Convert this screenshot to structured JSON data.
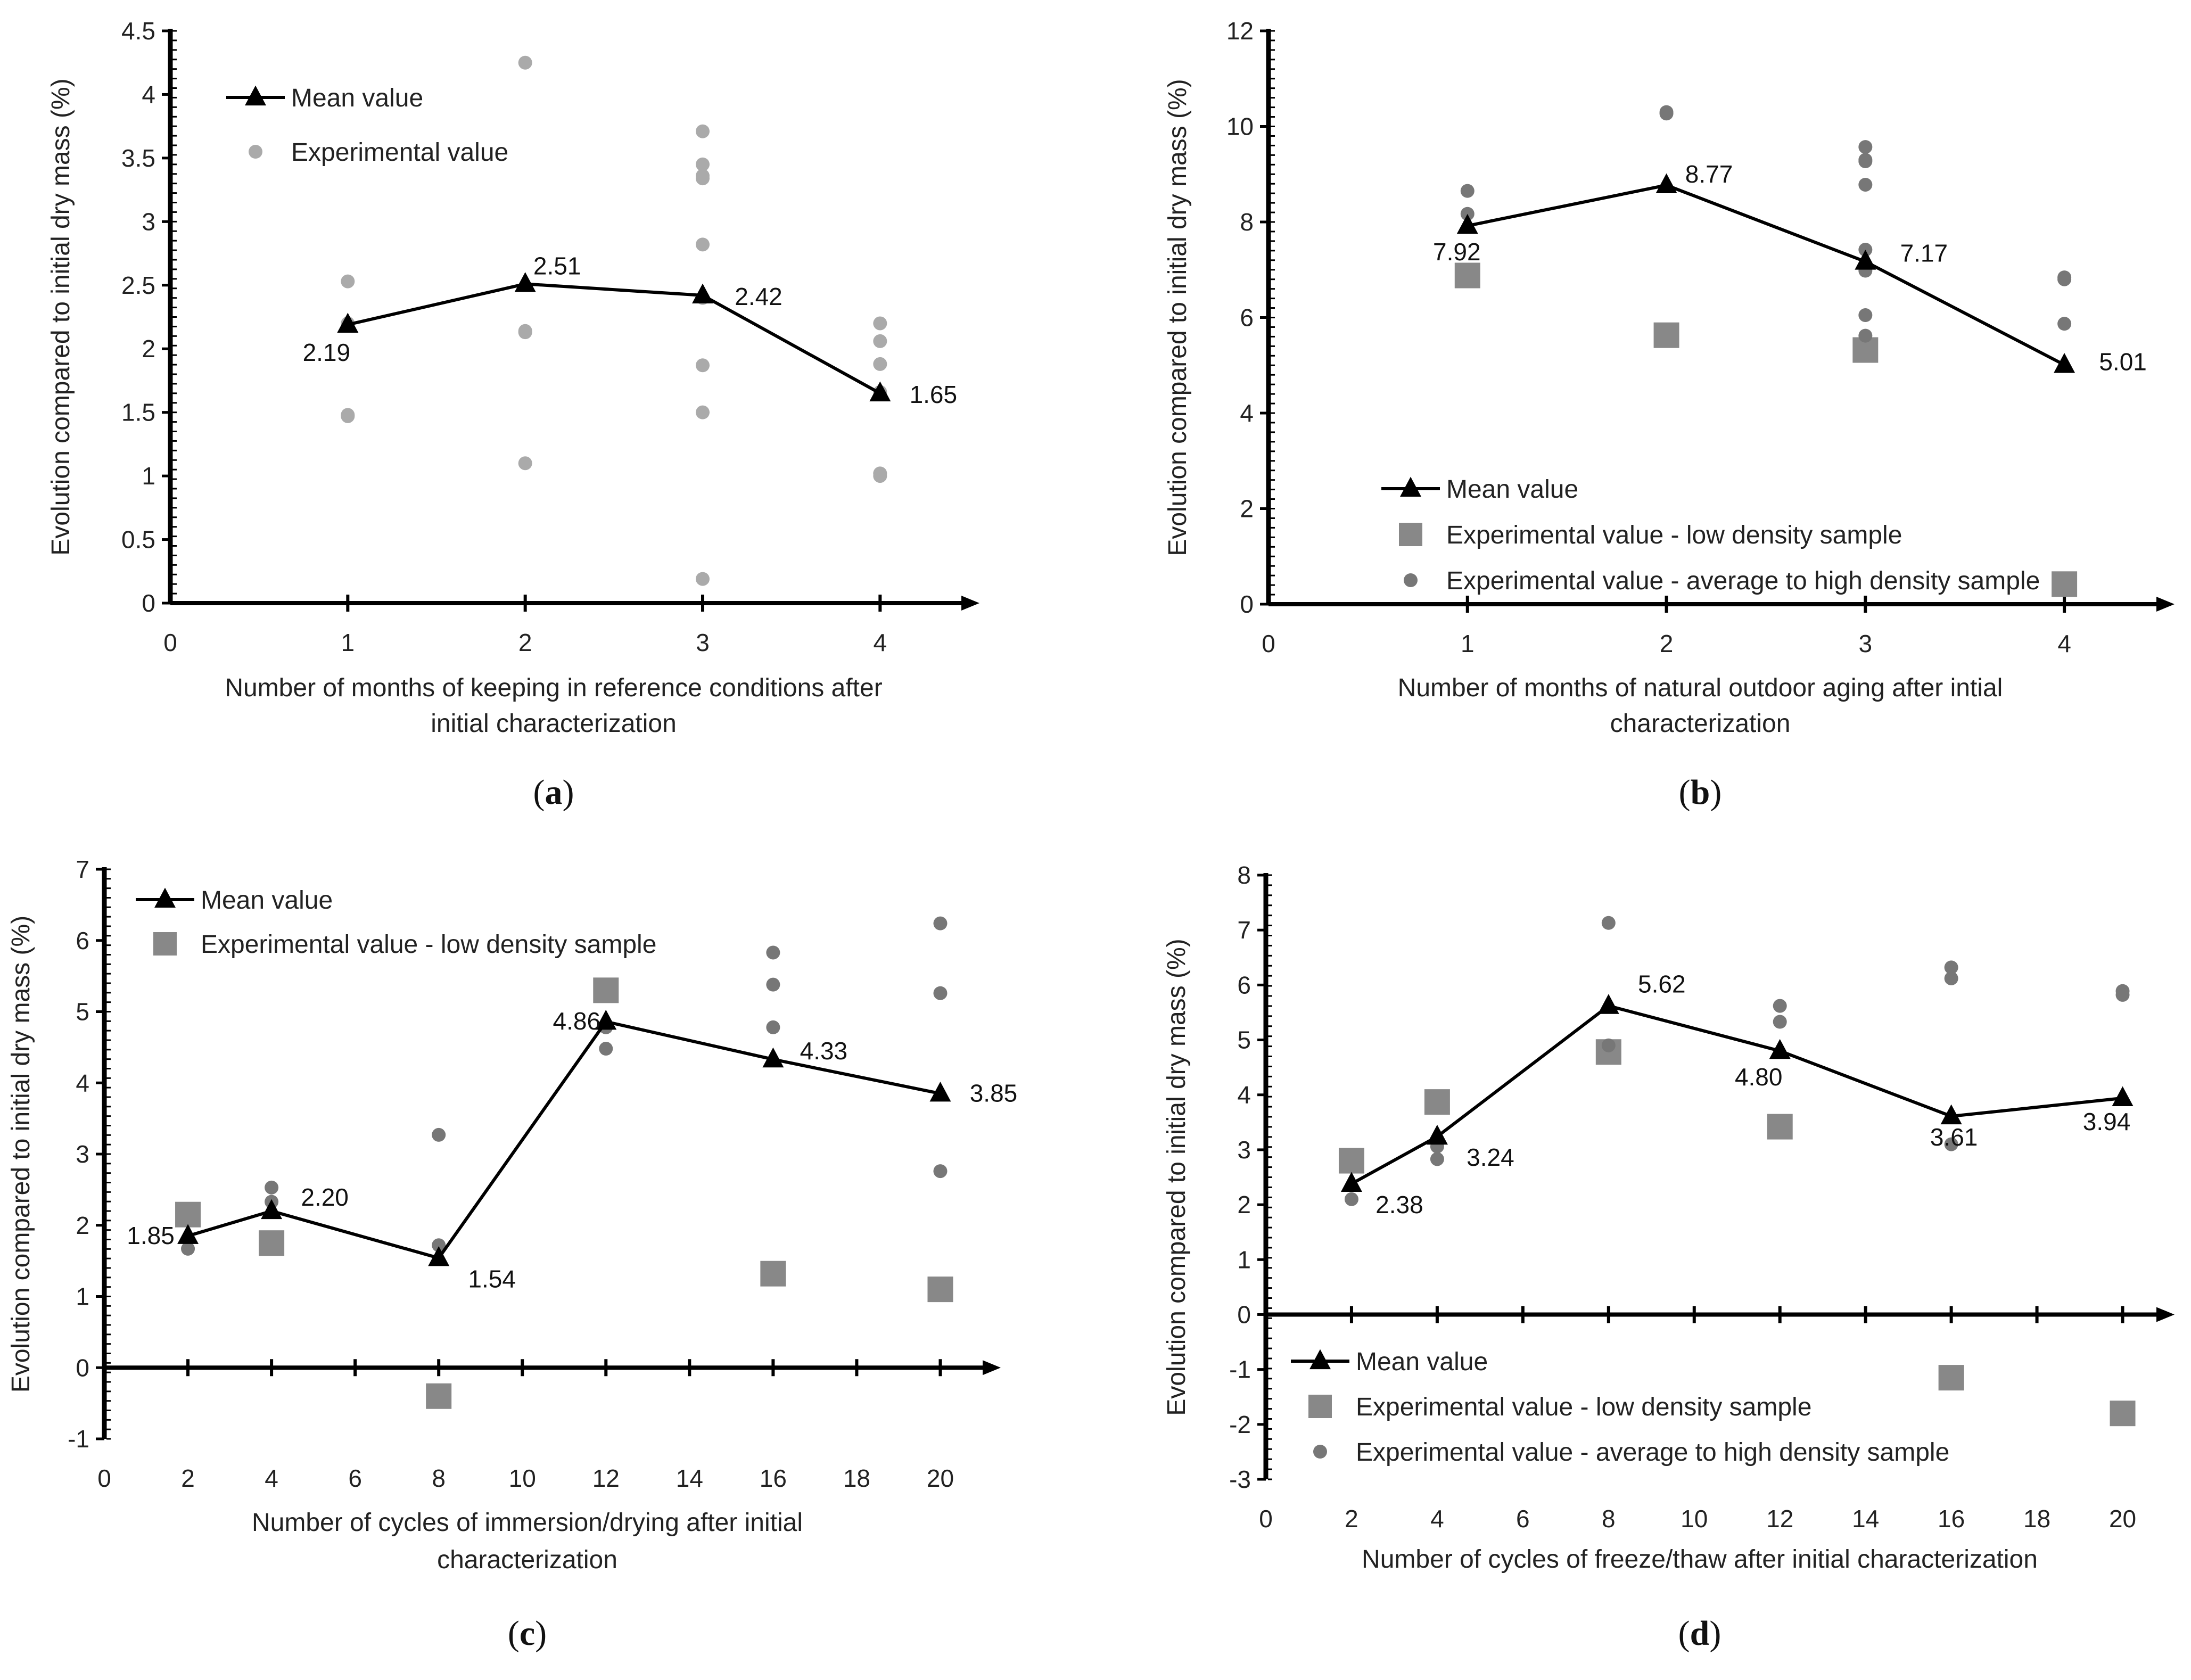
{
  "colors": {
    "axis": "#000000",
    "mean": "#000000",
    "exp_light": "#aaaaaa",
    "exp_low": "#888888",
    "exp_high": "#777777"
  },
  "chart_data": [
    {
      "id": "a",
      "type": "line",
      "caption_letter": "a",
      "ylabel": "Evolution compared to initial dry mass (%)",
      "xlabel_lines": [
        "Number of months of keeping in reference conditions after",
        "initial characterization"
      ],
      "xlim": [
        0,
        4.5
      ],
      "ylim": [
        0,
        4.5
      ],
      "xticks": [
        0,
        1,
        2,
        3,
        4
      ],
      "xtick_labels": [
        "0",
        "1",
        "2",
        "3",
        "4"
      ],
      "yticks": [
        0,
        0.5,
        1,
        1.5,
        2,
        2.5,
        3,
        3.5,
        4,
        4.5
      ],
      "ytick_labels": [
        "0",
        "0.5",
        "1",
        "1.5",
        "2",
        "2.5",
        "3",
        "3.5",
        "4",
        "4.5"
      ],
      "legend": [
        "Mean value",
        "Experimental value"
      ],
      "series": [
        {
          "name": "Mean value",
          "kind": "mean",
          "x": [
            1,
            2,
            3,
            4
          ],
          "y": [
            2.19,
            2.51,
            2.42,
            1.65
          ],
          "labels": [
            "2.19",
            "2.51",
            "2.42",
            "1.65"
          ]
        },
        {
          "name": "Experimental value",
          "kind": "exp_light",
          "x": [
            1,
            1,
            1,
            1,
            2,
            2,
            2,
            2,
            3,
            3,
            3,
            3,
            3,
            3,
            3,
            3,
            3,
            4,
            4,
            4,
            4,
            4,
            4
          ],
          "y": [
            2.53,
            2.2,
            1.48,
            1.47,
            4.25,
            2.14,
            2.13,
            1.1,
            3.71,
            3.45,
            3.36,
            3.34,
            2.82,
            1.87,
            1.5,
            0.19,
            2.4,
            2.2,
            2.06,
            1.88,
            1.66,
            1.02,
            1.0
          ]
        }
      ]
    },
    {
      "id": "b",
      "type": "line",
      "caption_letter": "b",
      "ylabel": "Evolution compared to initial dry mass (%)",
      "xlabel_lines": [
        "Number of months of natural outdoor aging after intial",
        "characterization"
      ],
      "xlim": [
        0,
        4.5
      ],
      "ylim": [
        0,
        12
      ],
      "xticks": [
        0,
        1,
        2,
        3,
        4
      ],
      "xtick_labels": [
        "0",
        "1",
        "2",
        "3",
        "4"
      ],
      "yticks": [
        0,
        2,
        4,
        6,
        8,
        10,
        12
      ],
      "ytick_labels": [
        "0",
        "2",
        "4",
        "6",
        "8",
        "10",
        "12"
      ],
      "legend": [
        "Mean value",
        "Experimental value - low density sample",
        "Experimental value - average to high density sample"
      ],
      "series": [
        {
          "name": "Mean value",
          "kind": "mean",
          "x": [
            1,
            2,
            3,
            4
          ],
          "y": [
            7.92,
            8.77,
            7.17,
            5.01
          ],
          "labels": [
            "7.92",
            "8.77",
            "7.17",
            "5.01"
          ]
        },
        {
          "name": "Experimental value - low density sample",
          "kind": "exp_low",
          "x": [
            1,
            2,
            3,
            4
          ],
          "y": [
            6.88,
            5.63,
            5.32,
            0.42
          ]
        },
        {
          "name": "Experimental value - average to high density sample",
          "kind": "exp_high",
          "x": [
            1,
            1,
            2,
            2,
            3,
            3,
            3,
            3,
            3,
            3,
            3,
            3,
            4,
            4,
            4
          ],
          "y": [
            8.65,
            8.17,
            10.3,
            10.27,
            9.57,
            9.3,
            9.27,
            8.78,
            7.42,
            6.98,
            6.05,
            5.62,
            6.84,
            6.8,
            5.87
          ]
        }
      ]
    },
    {
      "id": "c",
      "type": "line",
      "caption_letter": "c",
      "ylabel": "Evolution compared to initial dry mass (%)",
      "xlabel_lines": [
        "Number of cycles of immersion/drying after initial",
        "characterization"
      ],
      "xlim": [
        0,
        21
      ],
      "ylim": [
        -1,
        7
      ],
      "xticks": [
        0,
        2,
        4,
        6,
        8,
        10,
        12,
        14,
        16,
        18,
        20
      ],
      "xtick_labels": [
        "0",
        "2",
        "4",
        "6",
        "8",
        "10",
        "12",
        "14",
        "16",
        "18",
        "20"
      ],
      "yticks": [
        -1,
        0,
        1,
        2,
        3,
        4,
        5,
        6,
        7
      ],
      "ytick_labels": [
        "-1",
        "0",
        "1",
        "2",
        "3",
        "4",
        "5",
        "6",
        "7"
      ],
      "legend": [
        "Mean value",
        "Experimental value - low density sample"
      ],
      "series": [
        {
          "name": "Mean value",
          "kind": "mean",
          "x": [
            2,
            4,
            8,
            12,
            16,
            20
          ],
          "y": [
            1.85,
            2.2,
            1.54,
            4.86,
            4.33,
            3.85
          ],
          "labels": [
            "1.85",
            "2.20",
            "1.54",
            "4.86",
            "4.33",
            "3.85"
          ]
        },
        {
          "name": "Experimental value - low density sample",
          "kind": "exp_low",
          "x": [
            2,
            4,
            8,
            12,
            16,
            20
          ],
          "y": [
            2.15,
            1.75,
            -0.4,
            5.3,
            1.32,
            1.1
          ]
        },
        {
          "name": "Experimental value - average to high density sample",
          "kind": "exp_high",
          "x": [
            2,
            4,
            4,
            8,
            8,
            12,
            12,
            16,
            16,
            16,
            20,
            20,
            20
          ],
          "y": [
            1.67,
            2.53,
            2.33,
            3.27,
            1.72,
            4.78,
            4.48,
            5.83,
            5.38,
            4.78,
            6.24,
            5.26,
            2.76
          ]
        }
      ]
    },
    {
      "id": "d",
      "type": "line",
      "caption_letter": "d",
      "ylabel": "Evolution compared to initial dry mass (%)",
      "xlabel_lines": [
        "Number of cycles of freeze/thaw after initial characterization"
      ],
      "xlim": [
        0,
        21
      ],
      "ylim": [
        -3,
        8
      ],
      "xticks": [
        0,
        2,
        4,
        6,
        8,
        10,
        12,
        14,
        16,
        18,
        20
      ],
      "xtick_labels": [
        "0",
        "2",
        "4",
        "6",
        "8",
        "10",
        "12",
        "14",
        "16",
        "18",
        "20"
      ],
      "yticks": [
        -3,
        -2,
        -1,
        0,
        1,
        2,
        3,
        4,
        5,
        6,
        7,
        8
      ],
      "ytick_labels": [
        "-3",
        "-2",
        "-1",
        "0",
        "1",
        "2",
        "3",
        "4",
        "5",
        "6",
        "7",
        "8"
      ],
      "legend": [
        "Mean value",
        "Experimental value - low density sample",
        "Experimental value - average to high density sample"
      ],
      "series": [
        {
          "name": "Mean value",
          "kind": "mean",
          "x": [
            2,
            4,
            8,
            12,
            16,
            20
          ],
          "y": [
            2.38,
            3.24,
            5.62,
            4.8,
            3.61,
            3.94
          ],
          "labels": [
            "2.38",
            "3.24",
            "5.62",
            "4.80",
            "3.61",
            "3.94"
          ]
        },
        {
          "name": "Experimental value - low density sample",
          "kind": "exp_low",
          "x": [
            2,
            4,
            8,
            12,
            16,
            20
          ],
          "y": [
            2.8,
            3.87,
            4.78,
            3.42,
            -1.15,
            -1.8
          ]
        },
        {
          "name": "Experimental value - average to high density sample",
          "kind": "exp_high",
          "x": [
            2,
            4,
            4,
            8,
            8,
            12,
            12,
            16,
            16,
            16,
            20,
            20
          ],
          "y": [
            2.1,
            3.06,
            2.83,
            7.13,
            4.9,
            5.62,
            5.33,
            6.32,
            6.12,
            3.1,
            5.89,
            5.82
          ]
        }
      ]
    }
  ]
}
